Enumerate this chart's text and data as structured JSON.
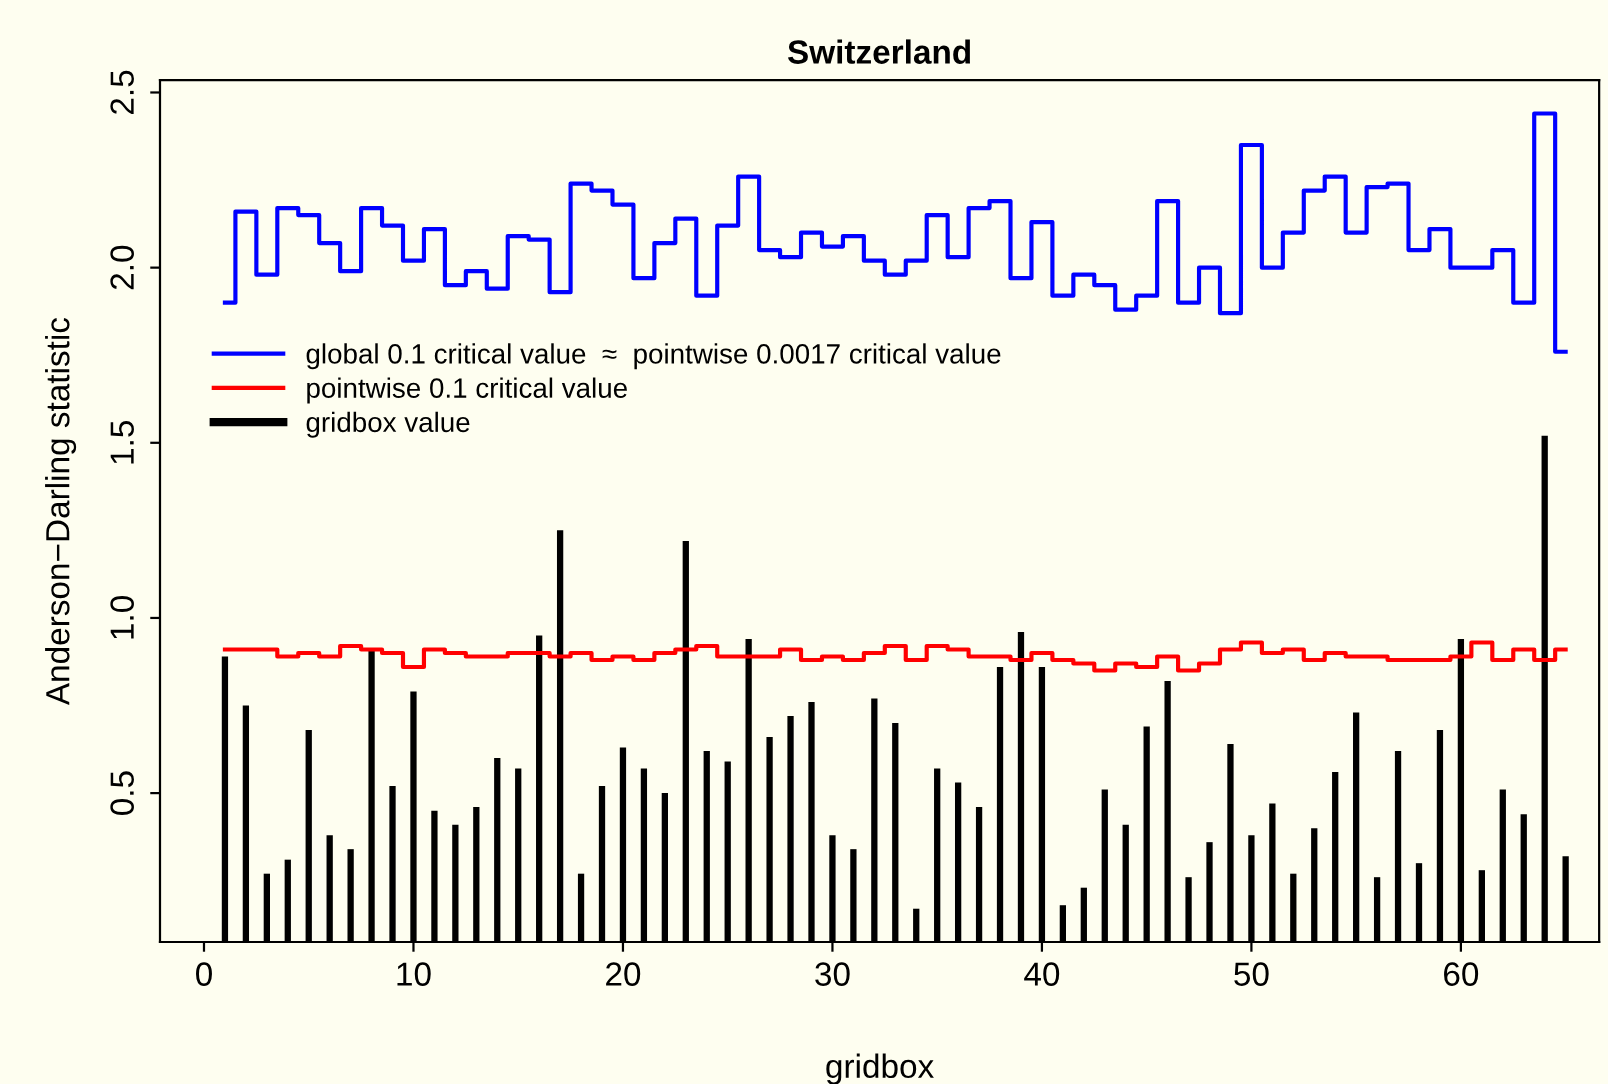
{
  "chart_data": {
    "type": "bar",
    "title": "Switzerland",
    "xlabel": "gridbox",
    "ylabel": "Anderson−Darling statistic",
    "x": [
      1,
      2,
      3,
      4,
      5,
      6,
      7,
      8,
      9,
      10,
      11,
      12,
      13,
      14,
      15,
      16,
      17,
      18,
      19,
      20,
      21,
      22,
      23,
      24,
      25,
      26,
      27,
      28,
      29,
      30,
      31,
      32,
      33,
      34,
      35,
      36,
      37,
      38,
      39,
      40,
      41,
      42,
      43,
      44,
      45,
      46,
      47,
      48,
      49,
      50,
      51,
      52,
      53,
      54,
      55,
      56,
      57,
      58,
      59,
      60,
      61,
      62,
      63,
      64,
      65
    ],
    "series": [
      {
        "name": "global 0.1 critical value  ≈  pointwise 0.0017 critical value",
        "type": "step",
        "color": "#0000ff",
        "values": [
          1.9,
          2.16,
          1.98,
          2.17,
          2.15,
          2.07,
          1.99,
          2.17,
          2.12,
          2.02,
          2.11,
          1.95,
          1.99,
          1.94,
          2.09,
          2.08,
          1.93,
          2.24,
          2.22,
          2.18,
          1.97,
          2.07,
          2.14,
          1.92,
          2.12,
          2.26,
          2.05,
          2.03,
          2.1,
          2.06,
          2.09,
          2.02,
          1.98,
          2.02,
          2.15,
          2.03,
          2.17,
          2.19,
          1.97,
          2.13,
          1.92,
          1.98,
          1.95,
          1.88,
          1.92,
          2.19,
          1.9,
          2.0,
          1.87,
          2.35,
          2.0,
          2.1,
          2.22,
          2.26,
          2.1,
          2.23,
          2.24,
          2.05,
          2.11,
          2.0,
          2.0,
          2.05,
          1.9,
          2.44,
          1.76
        ]
      },
      {
        "name": "pointwise 0.1 critical value",
        "type": "step",
        "color": "#ff0000",
        "values": [
          0.91,
          0.91,
          0.91,
          0.89,
          0.9,
          0.89,
          0.92,
          0.91,
          0.9,
          0.86,
          0.91,
          0.9,
          0.89,
          0.89,
          0.9,
          0.9,
          0.89,
          0.9,
          0.88,
          0.89,
          0.88,
          0.9,
          0.91,
          0.92,
          0.89,
          0.89,
          0.89,
          0.91,
          0.88,
          0.89,
          0.88,
          0.9,
          0.92,
          0.88,
          0.92,
          0.91,
          0.89,
          0.89,
          0.88,
          0.9,
          0.88,
          0.87,
          0.85,
          0.87,
          0.86,
          0.89,
          0.85,
          0.87,
          0.91,
          0.93,
          0.9,
          0.91,
          0.88,
          0.9,
          0.89,
          0.89,
          0.88,
          0.88,
          0.88,
          0.89,
          0.93,
          0.88,
          0.91,
          0.88,
          0.91
        ]
      },
      {
        "name": "gridbox value",
        "color": "#000000",
        "values": [
          0.89,
          0.75,
          0.27,
          0.31,
          0.68,
          0.38,
          0.34,
          0.91,
          0.52,
          0.79,
          0.45,
          0.41,
          0.46,
          0.6,
          0.57,
          0.95,
          1.25,
          0.27,
          0.52,
          0.63,
          0.57,
          0.5,
          1.22,
          0.62,
          0.59,
          0.94,
          0.66,
          0.72,
          0.76,
          0.38,
          0.34,
          0.77,
          0.7,
          0.17,
          0.57,
          0.53,
          0.46,
          0.86,
          0.96,
          0.86,
          0.18,
          0.23,
          0.51,
          0.41,
          0.69,
          0.82,
          0.26,
          0.36,
          0.64,
          0.38,
          0.47,
          0.27,
          0.4,
          0.56,
          0.73,
          0.26,
          0.62,
          0.3,
          0.68,
          0.94,
          0.28,
          0.51,
          0.44,
          1.52,
          0.32
        ]
      }
    ],
    "xlim": [
      -2.1,
      66.6
    ],
    "ylim": [
      0.075,
      2.535
    ],
    "xticks": [
      0,
      10,
      20,
      30,
      40,
      50,
      60
    ],
    "yticks": [
      0.5,
      {
        "value": 1,
        "label": "1.0"
      },
      1.5,
      {
        "value": 2,
        "label": "2.0"
      },
      2.5
    ],
    "grid": false,
    "legend": "left"
  }
}
